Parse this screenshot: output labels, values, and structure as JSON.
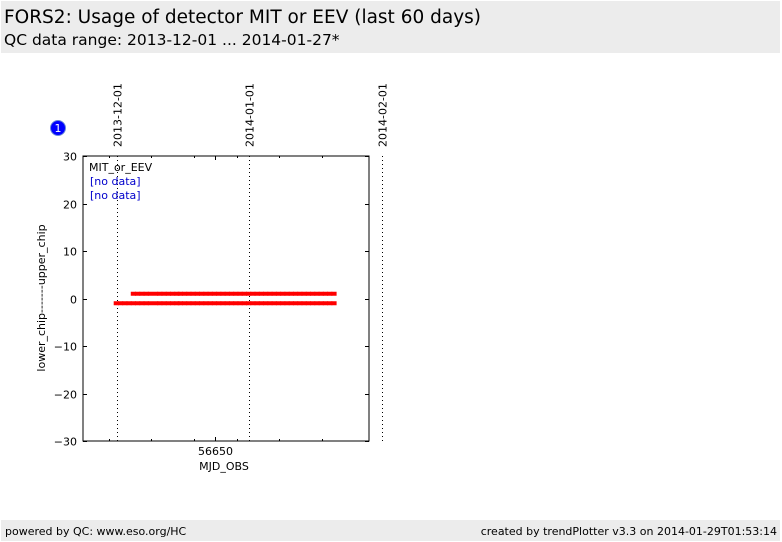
{
  "header": {
    "title": "FORS2: Usage of detector MIT or EEV (last 60 days)",
    "subtitle": "QC data range: 2013-12-01 ... 2014-01-27*"
  },
  "footer": {
    "left": "powered by QC: www.eso.org/HC",
    "right": "created by trendPlotter v3.3 on 2014-01-29T01:53:14"
  },
  "badge": {
    "label": "1",
    "color": "#0000ff"
  },
  "legend": {
    "title": "MIT_or_EEV",
    "entries": [
      "[no data]",
      "[no data]"
    ],
    "entry_color": "#0000cc"
  },
  "chart_data": {
    "type": "scatter",
    "xlabel": "MJD_OBS",
    "ylabel": "lower_chip-------upper_chip",
    "xlim": [
      56619,
      56686
    ],
    "ylim": [
      -30,
      30
    ],
    "x_ticks": [
      56650
    ],
    "x_tick_labels": [
      "56650"
    ],
    "x_minor_ticks": [
      56625,
      56635,
      56645,
      56655,
      56665,
      56675
    ],
    "y_ticks": [
      -30,
      -20,
      -10,
      0,
      10,
      20,
      30
    ],
    "y_tick_labels": [
      "−30",
      "−20",
      "−10",
      "0",
      "10",
      "20",
      "30"
    ],
    "date_markers": [
      {
        "x": 56627,
        "label": "2013-12-01"
      },
      {
        "x": 56658,
        "label": "2014-01-01"
      },
      {
        "x": 56689,
        "label": "2014-02-01"
      }
    ],
    "marker_color": "#ff0000",
    "series": [
      {
        "y": 1,
        "x": [
          56630.8,
          56631.8,
          56632.8,
          56633.8,
          56634.8,
          56636,
          56637,
          56638,
          56639,
          56640,
          56641,
          56641.8,
          56642.8,
          56643.8,
          56644.8,
          56645.8,
          56646.8,
          56647.8,
          56648.8,
          56649.8,
          56650.8,
          56651.8,
          56652.8,
          56653.8,
          56654.8,
          56655.8,
          56656.8,
          56657.8,
          56658.8,
          56659.8,
          56660.8,
          56661.8,
          56662.8,
          56663.8,
          56664.8,
          56665.8,
          56666.8,
          56667.8,
          56668.8,
          56669.8,
          56670.8,
          56671.8,
          56672.8,
          56673.8,
          56674.8,
          56675.8,
          56676.8,
          56677.8
        ]
      },
      {
        "y": -1,
        "x": [
          56626.8,
          56627.8,
          56628.8,
          56629.8,
          56630.8,
          56631.8,
          56632.8,
          56633.8,
          56634.8,
          56636,
          56637,
          56638,
          56639,
          56640,
          56641,
          56641.8,
          56642.8,
          56643.8,
          56644.8,
          56645.8,
          56646.8,
          56647.8,
          56648.8,
          56649.8,
          56650.8,
          56651.8,
          56652.8,
          56653.8,
          56654.8,
          56655.8,
          56656.8,
          56657.8,
          56658.8,
          56659.8,
          56660.8,
          56661.8,
          56662.8,
          56663.8,
          56664.8,
          56665.8,
          56666.8,
          56667.8,
          56668.8,
          56669.8,
          56670.8,
          56671.8,
          56672.8,
          56673.8,
          56674.8,
          56675.8,
          56676.8,
          56677.8
        ]
      }
    ]
  }
}
